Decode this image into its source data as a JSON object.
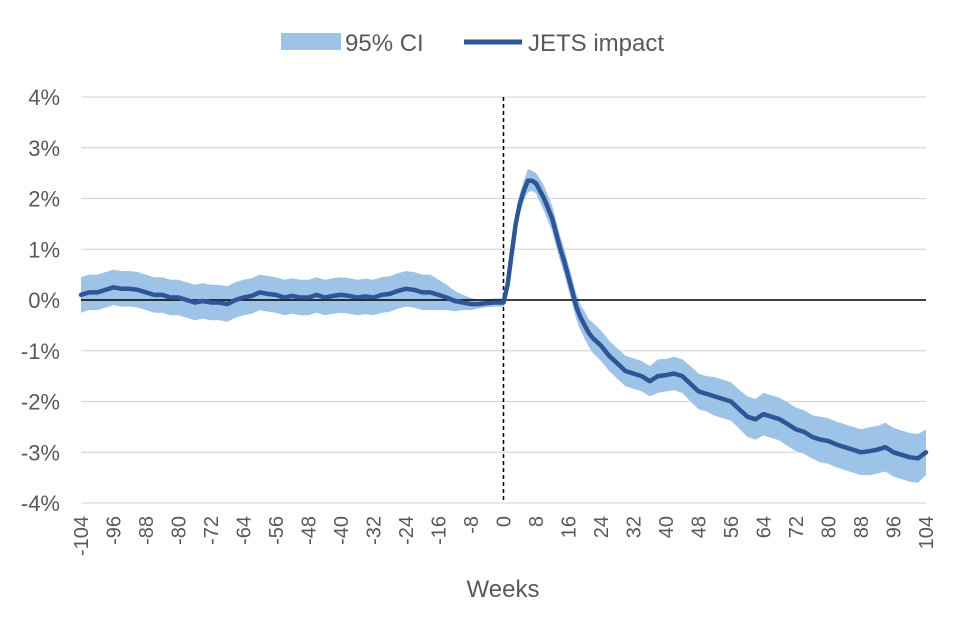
{
  "chart_data": {
    "type": "line",
    "title": "",
    "xlabel": "Weeks",
    "ylabel": "",
    "xlim": [
      -104,
      104
    ],
    "ylim": [
      -4,
      4
    ],
    "y_unit": "%",
    "grid": true,
    "legend_position": "top",
    "colors": {
      "ci": "#9dc3e6",
      "line": "#2f5597",
      "zero_line": "#000000",
      "grid": "#d9d9d9"
    },
    "x_ticks": [
      "-104",
      "-96",
      "-88",
      "-80",
      "-72",
      "-64",
      "-56",
      "-48",
      "-40",
      "-32",
      "-24",
      "-16",
      "-8",
      "0",
      "8",
      "16",
      "24",
      "32",
      "40",
      "48",
      "56",
      "64",
      "72",
      "80",
      "88",
      "96",
      "104"
    ],
    "y_ticks": [
      "4%",
      "3%",
      "2%",
      "1%",
      "0%",
      "-1%",
      "-2%",
      "-3%",
      "-4%"
    ],
    "vertical_marker_x": 0,
    "series": [
      {
        "name": "JETS impact",
        "x": [
          -104,
          -102,
          -100,
          -98,
          -96,
          -94,
          -92,
          -90,
          -88,
          -86,
          -84,
          -82,
          -80,
          -78,
          -76,
          -74,
          -72,
          -70,
          -68,
          -66,
          -64,
          -62,
          -60,
          -58,
          -56,
          -54,
          -52,
          -50,
          -48,
          -46,
          -44,
          -42,
          -40,
          -38,
          -36,
          -34,
          -32,
          -30,
          -28,
          -26,
          -24,
          -22,
          -20,
          -18,
          -16,
          -14,
          -12,
          -10,
          -8,
          -6,
          -4,
          -2,
          0,
          1,
          2,
          3,
          4,
          5,
          6,
          7,
          8,
          9,
          10,
          11,
          12,
          13,
          14,
          15,
          16,
          17,
          18,
          19,
          20,
          21,
          22,
          24,
          26,
          28,
          30,
          32,
          34,
          36,
          38,
          40,
          42,
          44,
          46,
          48,
          50,
          52,
          54,
          56,
          58,
          60,
          62,
          64,
          66,
          68,
          70,
          72,
          74,
          76,
          78,
          80,
          82,
          84,
          86,
          88,
          90,
          92,
          94,
          96,
          98,
          100,
          102,
          104
        ],
        "values": [
          0.1,
          0.15,
          0.15,
          0.2,
          0.25,
          0.22,
          0.22,
          0.2,
          0.15,
          0.1,
          0.1,
          0.05,
          0.05,
          0.0,
          -0.05,
          -0.02,
          -0.05,
          -0.05,
          -0.08,
          0.0,
          0.05,
          0.08,
          0.15,
          0.12,
          0.1,
          0.05,
          0.08,
          0.05,
          0.05,
          0.1,
          0.05,
          0.08,
          0.1,
          0.08,
          0.05,
          0.07,
          0.05,
          0.1,
          0.12,
          0.18,
          0.22,
          0.2,
          0.15,
          0.15,
          0.1,
          0.05,
          -0.02,
          -0.05,
          -0.08,
          -0.08,
          -0.06,
          -0.05,
          -0.05,
          0.3,
          0.9,
          1.5,
          1.9,
          2.15,
          2.35,
          2.35,
          2.3,
          2.15,
          2.0,
          1.8,
          1.6,
          1.3,
          1.0,
          0.75,
          0.45,
          0.15,
          -0.15,
          -0.35,
          -0.5,
          -0.65,
          -0.75,
          -0.9,
          -1.1,
          -1.25,
          -1.4,
          -1.45,
          -1.5,
          -1.6,
          -1.5,
          -1.48,
          -1.45,
          -1.5,
          -1.65,
          -1.8,
          -1.85,
          -1.9,
          -1.95,
          -2.0,
          -2.15,
          -2.3,
          -2.35,
          -2.25,
          -2.3,
          -2.35,
          -2.45,
          -2.55,
          -2.6,
          -2.7,
          -2.75,
          -2.78,
          -2.85,
          -2.9,
          -2.95,
          -3.0,
          -2.98,
          -2.95,
          -2.9,
          -3.0,
          -3.05,
          -3.1,
          -3.12,
          -3.0
        ]
      },
      {
        "name": "95% CI",
        "x": [
          -104,
          -102,
          -100,
          -98,
          -96,
          -94,
          -92,
          -90,
          -88,
          -86,
          -84,
          -82,
          -80,
          -78,
          -76,
          -74,
          -72,
          -70,
          -68,
          -66,
          -64,
          -62,
          -60,
          -58,
          -56,
          -54,
          -52,
          -50,
          -48,
          -46,
          -44,
          -42,
          -40,
          -38,
          -36,
          -34,
          -32,
          -30,
          -28,
          -26,
          -24,
          -22,
          -20,
          -18,
          -16,
          -14,
          -12,
          -10,
          -8,
          -6,
          -4,
          -2,
          0,
          1,
          2,
          3,
          4,
          5,
          6,
          7,
          8,
          9,
          10,
          11,
          12,
          13,
          14,
          15,
          16,
          17,
          18,
          19,
          20,
          21,
          22,
          24,
          26,
          28,
          30,
          32,
          34,
          36,
          38,
          40,
          42,
          44,
          46,
          48,
          50,
          52,
          54,
          56,
          58,
          60,
          62,
          64,
          66,
          68,
          70,
          72,
          74,
          76,
          78,
          80,
          82,
          84,
          86,
          88,
          90,
          92,
          94,
          96,
          98,
          100,
          102,
          104
        ],
        "lower": [
          -0.25,
          -0.2,
          -0.2,
          -0.15,
          -0.1,
          -0.13,
          -0.13,
          -0.15,
          -0.2,
          -0.25,
          -0.25,
          -0.3,
          -0.3,
          -0.35,
          -0.4,
          -0.37,
          -0.4,
          -0.4,
          -0.43,
          -0.35,
          -0.3,
          -0.27,
          -0.2,
          -0.23,
          -0.25,
          -0.3,
          -0.27,
          -0.3,
          -0.3,
          -0.25,
          -0.3,
          -0.27,
          -0.25,
          -0.27,
          -0.3,
          -0.28,
          -0.3,
          -0.25,
          -0.23,
          -0.17,
          -0.13,
          -0.15,
          -0.2,
          -0.2,
          -0.2,
          -0.2,
          -0.22,
          -0.2,
          -0.2,
          -0.16,
          -0.14,
          -0.13,
          -0.13,
          0.15,
          0.7,
          1.3,
          1.7,
          1.95,
          2.12,
          2.15,
          2.1,
          1.92,
          1.75,
          1.55,
          1.35,
          1.05,
          0.75,
          0.5,
          0.2,
          -0.1,
          -0.4,
          -0.6,
          -0.77,
          -0.92,
          -1.05,
          -1.2,
          -1.4,
          -1.55,
          -1.7,
          -1.75,
          -1.8,
          -1.9,
          -1.83,
          -1.8,
          -1.78,
          -1.83,
          -2.0,
          -2.15,
          -2.2,
          -2.28,
          -2.33,
          -2.38,
          -2.53,
          -2.7,
          -2.75,
          -2.67,
          -2.72,
          -2.77,
          -2.88,
          -2.98,
          -3.03,
          -3.13,
          -3.2,
          -3.23,
          -3.3,
          -3.35,
          -3.4,
          -3.45,
          -3.45,
          -3.42,
          -3.38,
          -3.48,
          -3.53,
          -3.58,
          -3.6,
          -3.45
        ],
        "upper": [
          0.45,
          0.5,
          0.5,
          0.55,
          0.6,
          0.57,
          0.57,
          0.55,
          0.5,
          0.45,
          0.45,
          0.4,
          0.4,
          0.35,
          0.3,
          0.33,
          0.3,
          0.3,
          0.27,
          0.35,
          0.4,
          0.43,
          0.5,
          0.47,
          0.45,
          0.4,
          0.43,
          0.4,
          0.4,
          0.45,
          0.4,
          0.43,
          0.45,
          0.43,
          0.4,
          0.42,
          0.4,
          0.45,
          0.47,
          0.53,
          0.57,
          0.55,
          0.5,
          0.5,
          0.4,
          0.3,
          0.18,
          0.1,
          0.04,
          0.0,
          0.02,
          0.03,
          0.03,
          0.45,
          1.1,
          1.7,
          2.1,
          2.35,
          2.58,
          2.55,
          2.5,
          2.38,
          2.25,
          2.05,
          1.85,
          1.55,
          1.25,
          1.0,
          0.7,
          0.4,
          0.1,
          -0.1,
          -0.23,
          -0.38,
          -0.45,
          -0.6,
          -0.8,
          -0.95,
          -1.1,
          -1.15,
          -1.2,
          -1.3,
          -1.17,
          -1.16,
          -1.12,
          -1.17,
          -1.3,
          -1.45,
          -1.5,
          -1.52,
          -1.57,
          -1.62,
          -1.77,
          -1.9,
          -1.95,
          -1.83,
          -1.88,
          -1.93,
          -2.02,
          -2.12,
          -2.17,
          -2.27,
          -2.3,
          -2.33,
          -2.4,
          -2.45,
          -2.5,
          -2.55,
          -2.51,
          -2.48,
          -2.42,
          -2.52,
          -2.57,
          -2.62,
          -2.64,
          -2.55
        ]
      }
    ]
  }
}
